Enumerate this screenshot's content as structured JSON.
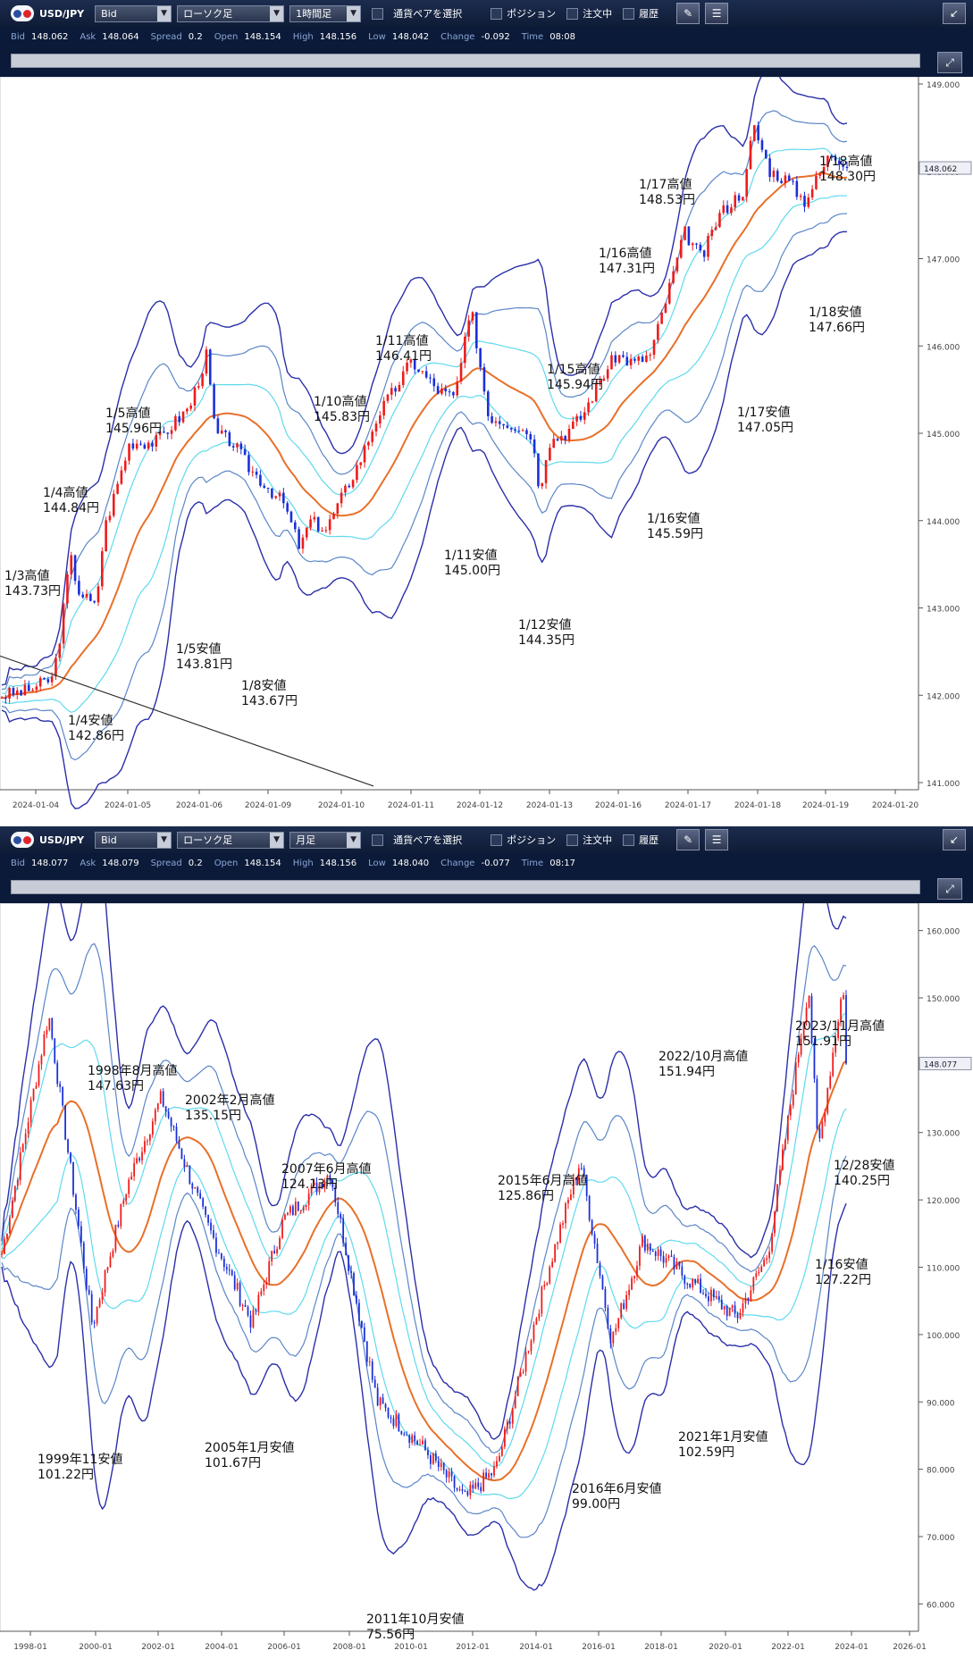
{
  "colors": {
    "mid": "#e8702a",
    "inner": "#5fd9ee",
    "middle": "#5b86c8",
    "outer": "#2b2fa8",
    "up": "#ee1b1b",
    "down": "#1a2fd8",
    "trend": "#333333",
    "axis": "#555555"
  },
  "panels": [
    {
      "pair": "USD/JPY",
      "bidask": "Bid",
      "chart_kind": "ローソク足",
      "timeframe": "1時間足",
      "select_pair": "通貨ペアを選択",
      "position": "ポジション",
      "orders": "注文中",
      "history": "履歴",
      "quote": {
        "bid_label": "Bid",
        "bid": "148.062",
        "ask_label": "Ask",
        "ask": "148.064",
        "spread_label": "Spread",
        "spread": "0.2",
        "open_label": "Open",
        "open": "148.154",
        "high_label": "High",
        "high": "148.156",
        "low_label": "Low",
        "low": "148.042",
        "change_label": "Change",
        "change": "-0.092",
        "time_label": "Time",
        "time": "08:08"
      },
      "price_tag": "148.062"
    },
    {
      "pair": "USD/JPY",
      "bidask": "Bid",
      "chart_kind": "ローソク足",
      "timeframe": "月足",
      "select_pair": "通貨ペアを選択",
      "position": "ポジション",
      "orders": "注文中",
      "history": "履歴",
      "quote": {
        "bid_label": "Bid",
        "bid": "148.077",
        "ask_label": "Ask",
        "ask": "148.079",
        "spread_label": "Spread",
        "spread": "0.2",
        "open_label": "Open",
        "open": "148.154",
        "high_label": "High",
        "high": "148.156",
        "low_label": "Low",
        "low": "148.040",
        "change_label": "Change",
        "change": "-0.077",
        "time_label": "Time",
        "time": "08:17"
      },
      "price_tag": "148.077"
    }
  ],
  "chart_data": [
    {
      "type": "candlestick",
      "x_ticks": [
        "2024-01-04",
        "2024-01-05",
        "2024-01-06",
        "2024-01-09",
        "2024-01-10",
        "2024-01-11",
        "2024-01-12",
        "2024-01-13",
        "2024-01-16",
        "2024-01-17",
        "2024-01-18",
        "2024-01-19",
        "2024-01-20"
      ],
      "y_ticks": [
        "149.000",
        "148.000",
        "147.000",
        "146.000",
        "145.000",
        "144.000",
        "143.000",
        "142.000",
        "141.000"
      ],
      "ylim": [
        141.0,
        149.0
      ],
      "path": [
        [
          0,
          142.0
        ],
        [
          3,
          142.05
        ],
        [
          6,
          142.2
        ],
        [
          7,
          142.8
        ],
        [
          8,
          143.6
        ],
        [
          9,
          143.2
        ],
        [
          11,
          143.0
        ],
        [
          12,
          143.9
        ],
        [
          15,
          144.9
        ],
        [
          18,
          144.9
        ],
        [
          22,
          145.3
        ],
        [
          24,
          145.9
        ],
        [
          25,
          145.0
        ],
        [
          27,
          144.9
        ],
        [
          29,
          144.6
        ],
        [
          31,
          144.4
        ],
        [
          33,
          144.2
        ],
        [
          35,
          143.67
        ],
        [
          36,
          144.0
        ],
        [
          38,
          143.9
        ],
        [
          40,
          144.3
        ],
        [
          42,
          144.7
        ],
        [
          44,
          145.2
        ],
        [
          46,
          145.5
        ],
        [
          48,
          145.83
        ],
        [
          51,
          145.5
        ],
        [
          53,
          145.4
        ],
        [
          55,
          146.41
        ],
        [
          57,
          145.2
        ],
        [
          60,
          145.1
        ],
        [
          62,
          145.0
        ],
        [
          63,
          144.35
        ],
        [
          64,
          144.9
        ],
        [
          66,
          145.0
        ],
        [
          68,
          145.2
        ],
        [
          70,
          145.6
        ],
        [
          72,
          145.9
        ],
        [
          74,
          145.8
        ],
        [
          76,
          145.9
        ],
        [
          78,
          146.6
        ],
        [
          80,
          147.3
        ],
        [
          82,
          147.0
        ],
        [
          84,
          147.5
        ],
        [
          87,
          147.8
        ],
        [
          88,
          148.53
        ],
        [
          90,
          148.0
        ],
        [
          92,
          147.9
        ],
        [
          94,
          147.66
        ],
        [
          96,
          148.0
        ],
        [
          97,
          148.2
        ],
        [
          99,
          148.1
        ]
      ],
      "annotations": [
        {
          "line1": "1/3高値",
          "line2": "143.73円"
        },
        {
          "line1": "1/4高値",
          "line2": "144.84円"
        },
        {
          "line1": "1/5高値",
          "line2": "145.96円"
        },
        {
          "line1": "1/4安値",
          "line2": "142.86円"
        },
        {
          "line1": "1/5安値",
          "line2": "143.81円"
        },
        {
          "line1": "1/8安値",
          "line2": "143.67円"
        },
        {
          "line1": "1/10高値",
          "line2": "145.83円"
        },
        {
          "line1": "1/11高値",
          "line2": "146.41円"
        },
        {
          "line1": "1/11安値",
          "line2": "145.00円"
        },
        {
          "line1": "1/12安値",
          "line2": "144.35円"
        },
        {
          "line1": "1/15高値",
          "line2": "145.94円"
        },
        {
          "line1": "1/16高値",
          "line2": "147.31円"
        },
        {
          "line1": "1/16安値",
          "line2": "145.59円"
        },
        {
          "line1": "1/17高値",
          "line2": "148.53円"
        },
        {
          "line1": "1/17安値",
          "line2": "147.05円"
        },
        {
          "line1": "1/18高値",
          "line2": "148.30円"
        },
        {
          "line1": "1/18安値",
          "line2": "147.66円"
        }
      ]
    },
    {
      "type": "candlestick",
      "x_ticks": [
        "1998-01",
        "2000-01",
        "2002-01",
        "2004-01",
        "2006-01",
        "2008-01",
        "2010-01",
        "2012-01",
        "2014-01",
        "2016-01",
        "2018-01",
        "2020-01",
        "2022-01",
        "2024-01",
        "2026-01"
      ],
      "y_ticks": [
        "160.000",
        "150.000",
        "140.000",
        "130.000",
        "120.000",
        "110.000",
        "100.000",
        "90.000",
        "80.000",
        "70.000",
        "60.000"
      ],
      "ylim": [
        57,
        163
      ],
      "path": [
        [
          1997.0,
          112
        ],
        [
          1998.5,
          147.6
        ],
        [
          1999.9,
          101.2
        ],
        [
          2001.0,
          122
        ],
        [
          2002.1,
          135.2
        ],
        [
          2003.5,
          117
        ],
        [
          2005.0,
          101.7
        ],
        [
          2006.0,
          117
        ],
        [
          2007.5,
          124.1
        ],
        [
          2009.0,
          90
        ],
        [
          2010.5,
          83
        ],
        [
          2011.8,
          75.6
        ],
        [
          2012.8,
          80
        ],
        [
          2014.5,
          110
        ],
        [
          2015.5,
          125.9
        ],
        [
          2016.5,
          99
        ],
        [
          2017.5,
          114
        ],
        [
          2019.0,
          108
        ],
        [
          2020.5,
          102.6
        ],
        [
          2021.5,
          112
        ],
        [
          2022.8,
          151.9
        ],
        [
          2023.1,
          127.2
        ],
        [
          2023.9,
          151.9
        ],
        [
          2024.0,
          141
        ]
      ],
      "annotations": [
        {
          "line1": "1998年8月高値",
          "line2": "147.63円"
        },
        {
          "line1": "1999年11安値",
          "line2": "101.22円"
        },
        {
          "line1": "2002年2月高値",
          "line2": "135.15円"
        },
        {
          "line1": "2005年1月安値",
          "line2": "101.67円"
        },
        {
          "line1": "2007年6月高値",
          "line2": "124.13円"
        },
        {
          "line1": "2011年10月安値",
          "line2": "75.56円"
        },
        {
          "line1": "2015年6月高値",
          "line2": "125.86円"
        },
        {
          "line1": "2016年6月安値",
          "line2": "99.00円"
        },
        {
          "line1": "2021年1月安値",
          "line2": "102.59円"
        },
        {
          "line1": "2022/10月高値",
          "line2": "151.94円"
        },
        {
          "line1": "2023/11月高値",
          "line2": "151.91円"
        },
        {
          "line1": "12/28安値",
          "line2": "140.25円"
        },
        {
          "line1": "1/16安値",
          "line2": "127.22円"
        }
      ]
    }
  ]
}
